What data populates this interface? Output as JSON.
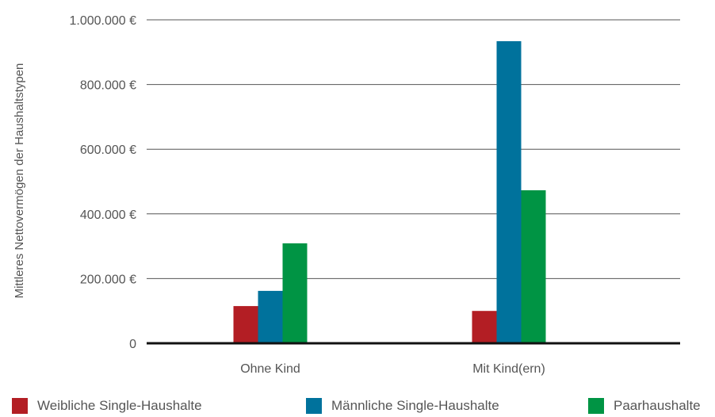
{
  "chart_data": {
    "type": "bar",
    "categories": [
      "Ohne Kind",
      "Mit Kind(ern)"
    ],
    "series": [
      {
        "name": "Weibliche Single-Haushalte",
        "values": [
          115000,
          100000
        ],
        "color": "#b31e24"
      },
      {
        "name": "Männliche Single-Haushalte",
        "values": [
          162000,
          934000
        ],
        "color": "#00729c"
      },
      {
        "name": "Paarhaushalte",
        "values": [
          309000,
          473000
        ],
        "color": "#009444"
      }
    ],
    "ylabel": "Mittleres Nettovermögen der Haushaltstypen",
    "ylim": [
      0,
      1000000
    ],
    "yticks": [
      {
        "value": 0,
        "label": "0"
      },
      {
        "value": 200000,
        "label": "200.000 €"
      },
      {
        "value": 400000,
        "label": "400.000 €"
      },
      {
        "value": 600000,
        "label": "600.000 €"
      },
      {
        "value": 800000,
        "label": "800.000 €"
      },
      {
        "value": 1000000,
        "label": "1.000.000 €"
      }
    ],
    "grid": true,
    "legend_position": "bottom"
  }
}
